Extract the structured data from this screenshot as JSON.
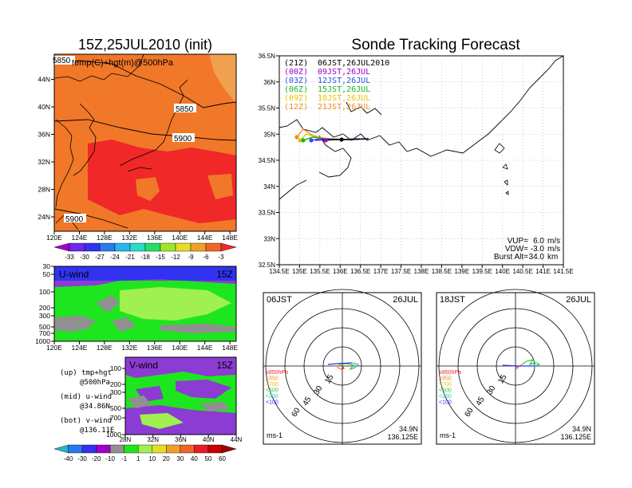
{
  "main_title": "Sonde Tracking Forecast",
  "colors": {
    "orange": "#f07828",
    "red": "#f02828",
    "green": "#1ee61e",
    "purple": "#8c3cd2",
    "lime": "#a0f050",
    "blue": "#3232f0",
    "gray": "#909090"
  },
  "top_left": {
    "title": "15Z,25JUL2010 (init)",
    "subtitle": "temp(C)+hgt(m)@500hPa",
    "x_ticks": [
      "120E",
      "124E",
      "128E",
      "132E",
      "136E",
      "140E",
      "144E",
      "148E"
    ],
    "y_ticks": [
      "24N",
      "28N",
      "32N",
      "36N",
      "40N",
      "44N"
    ],
    "contour_labels": [
      "5850",
      "5850",
      "5900",
      "5900"
    ],
    "colorbar_ticks": [
      "-33",
      "-30",
      "-27",
      "-24",
      "-21",
      "-18",
      "-15",
      "-12",
      "-9",
      "-6",
      "-3"
    ]
  },
  "uwind": {
    "title": "U-wind",
    "time": "15Z",
    "y_ticks": [
      "30",
      "50",
      "100",
      "200",
      "300",
      "500",
      "700",
      "1000"
    ],
    "x_ticks": [
      "120E",
      "124E",
      "128E",
      "132E",
      "136E",
      "140E",
      "144E",
      "148E"
    ]
  },
  "vwind": {
    "title": "V-wind",
    "time": "15Z",
    "y_ticks": [
      "100",
      "200",
      "300",
      "500",
      "700",
      "1000"
    ],
    "x_ticks": [
      "28N",
      "32N",
      "36N",
      "40N",
      "44N"
    ]
  },
  "legend_notes": [
    {
      "l1": "(up) tmp+hgt",
      "l2": "@500hPa"
    },
    {
      "l1": "(mid) u-wind",
      "l2": "@34.86N"
    },
    {
      "l1": "(bot) v-wind",
      "l2": "@136.11E"
    }
  ],
  "wind_colorbar_ticks": [
    "-40",
    "-30",
    "-20",
    "-10",
    "-1",
    "1",
    "10",
    "20",
    "30",
    "40",
    "50",
    "60"
  ],
  "track": {
    "x_ticks": [
      "134.5E",
      "135E",
      "135.5E",
      "136E",
      "136.5E",
      "137E",
      "137.5E",
      "138E",
      "138.5E",
      "139E",
      "139.5E",
      "140E",
      "140.5E",
      "141E",
      "141.5E"
    ],
    "y_ticks": [
      "32.5N",
      "33N",
      "33.5N",
      "34N",
      "34.5N",
      "35N",
      "35.5N",
      "36N",
      "36.5N"
    ],
    "runs": [
      {
        "label": "(21Z)",
        "time": "06JST,26JUL2010",
        "color": "#000000"
      },
      {
        "label": "(00Z)",
        "time": "09JST,26JUL",
        "color": "#a000c8"
      },
      {
        "label": "(03Z)",
        "time": "12JST,26JUL",
        "color": "#2850f0"
      },
      {
        "label": "(06Z)",
        "time": "15JST,26JUL",
        "color": "#1eb41e"
      },
      {
        "label": "(09Z)",
        "time": "18JST,26JUL",
        "color": "#e6c800"
      },
      {
        "label": "(12Z)",
        "time": "21JST,26JUL",
        "color": "#f08c28"
      }
    ],
    "params": [
      {
        "label": "VUP=",
        "value": "6.0",
        "unit": "m/s"
      },
      {
        "label": "VDW=",
        "value": "-3.0",
        "unit": "m/s"
      },
      {
        "label": "Burst Alt=",
        "value": "34.0",
        "unit": "km"
      }
    ]
  },
  "hodographs": [
    {
      "time": "06JST",
      "date": "26JUL",
      "lat": "34.9N",
      "lon": "136.125E",
      "unit": "ms-1",
      "rings": [
        "15",
        "30",
        "45",
        "60"
      ],
      "levels": [
        {
          "label": "≥850hPa",
          "color": "#f02828"
        },
        {
          "label": "<850",
          "color": "#f08c28"
        },
        {
          "label": "<700",
          "color": "#e6c800"
        },
        {
          "label": "<500",
          "color": "#32c832"
        },
        {
          "label": "<250",
          "color": "#28c8c8"
        },
        {
          "label": "<100",
          "color": "#3232f0"
        }
      ]
    },
    {
      "time": "18JST",
      "date": "26JUL",
      "lat": "34.9N",
      "lon": "136.125E",
      "unit": "ms-1",
      "rings": [
        "15",
        "30",
        "45",
        "60"
      ],
      "levels": [
        {
          "label": "≥850hPa",
          "color": "#f02828"
        },
        {
          "label": "<850",
          "color": "#f08c28"
        },
        {
          "label": "<700",
          "color": "#e6c800"
        },
        {
          "label": "<500",
          "color": "#32c832"
        },
        {
          "label": "<250",
          "color": "#28c8c8"
        },
        {
          "label": "<100",
          "color": "#3232f0"
        }
      ]
    }
  ]
}
